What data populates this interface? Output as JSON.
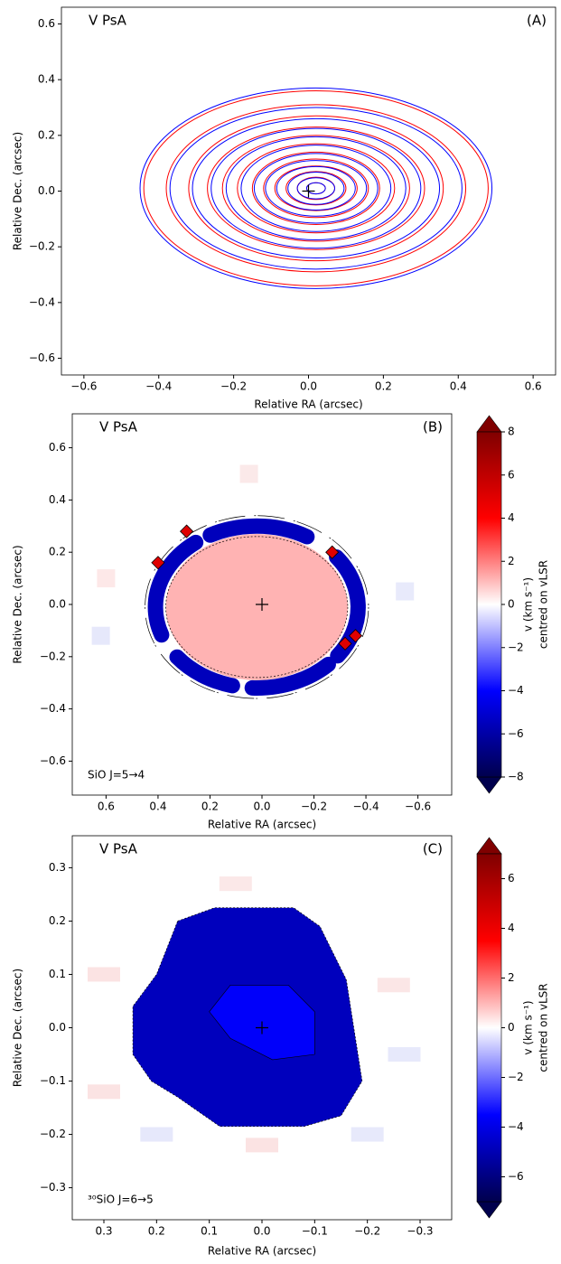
{
  "chart_data": [
    {
      "type": "contour",
      "title": "V PsA",
      "panel": "(A)",
      "xlabel": "Relative RA (arcsec)",
      "ylabel": "Relative Dec. (arcsec)",
      "xlim": [
        -0.66,
        0.66
      ],
      "ylim": [
        -0.66,
        0.66
      ],
      "xticks": [
        {
          "value": -0.6,
          "label": "−0.6"
        },
        {
          "value": -0.4,
          "label": "−0.4"
        },
        {
          "value": -0.2,
          "label": "−0.2"
        },
        {
          "value": 0,
          "label": "0.0"
        },
        0.2,
        0.4,
        0.6
      ],
      "yticks": [
        {
          "value": -0.6,
          "label": "−0.6"
        },
        {
          "value": -0.4,
          "label": "−0.4"
        },
        {
          "value": -0.2,
          "label": "−0.2"
        },
        {
          "value": 0,
          "label": "0.0"
        },
        0.2,
        0.4,
        0.6
      ],
      "center": [
        0.02,
        0.01
      ],
      "series": [
        {
          "color": "#ff0000",
          "rx": [
            0.46,
            0.4,
            0.34,
            0.29,
            0.25,
            0.21,
            0.17,
            0.14,
            0.11,
            0.08,
            0.05,
            0.025
          ],
          "ry": [
            0.35,
            0.3,
            0.26,
            0.22,
            0.19,
            0.16,
            0.13,
            0.105,
            0.08,
            0.06,
            0.04,
            0.02
          ]
        },
        {
          "color": "#0000ff",
          "rx": [
            0.47,
            0.39,
            0.33,
            0.28,
            0.24,
            0.2,
            0.165,
            0.135,
            0.105,
            0.075,
            0.05,
            0.025
          ],
          "ry": [
            0.36,
            0.29,
            0.25,
            0.215,
            0.185,
            0.155,
            0.125,
            0.1,
            0.078,
            0.058,
            0.038,
            0.02
          ]
        }
      ],
      "marker": [
        0,
        0
      ]
    },
    {
      "type": "image",
      "title": "V PsA",
      "panel": "(B)",
      "line": "SiO  J=5→4",
      "xlabel": "Relative RA (arcsec)",
      "ylabel": "Relative Dec. (arcsec)",
      "xlim": [
        0.73,
        -0.73
      ],
      "ylim": [
        -0.73,
        0.73
      ],
      "xticks": [
        0.6,
        0.4,
        0.2,
        {
          "value": 0,
          "label": "0.0"
        },
        {
          "value": -0.2,
          "label": "−0.2"
        },
        {
          "value": -0.4,
          "label": "−0.4"
        },
        {
          "value": -0.6,
          "label": "−0.6"
        }
      ],
      "yticks": [
        {
          "value": -0.6,
          "label": "−0.6"
        },
        {
          "value": -0.4,
          "label": "−0.4"
        },
        {
          "value": -0.2,
          "label": "−0.2"
        },
        {
          "value": 0,
          "label": "0.0"
        },
        0.2,
        0.4,
        0.6
      ],
      "colormap": "seismic",
      "clim": [
        -8,
        8
      ],
      "cticks": [
        {
          "value": -8,
          "label": "−8"
        },
        {
          "value": -6,
          "label": "−6"
        },
        {
          "value": -4,
          "label": "−4"
        },
        {
          "value": -2,
          "label": "−2"
        },
        0,
        2,
        4,
        6,
        8
      ],
      "colorbar_label": [
        "v (km s⁻¹)",
        "centred on vLSR"
      ],
      "values": [
        1.2,
        -5.5,
        5
      ],
      "marker": [
        0,
        0
      ]
    },
    {
      "type": "image",
      "title": "V PsA",
      "panel": "(C)",
      "line": "³⁰SiO  J=6→5",
      "xlabel": "Relative RA (arcsec)",
      "ylabel": "Relative Dec. (arcsec)",
      "xlim": [
        0.36,
        -0.36
      ],
      "ylim": [
        -0.36,
        0.36
      ],
      "xticks": [
        0.3,
        0.2,
        0.1,
        {
          "value": 0,
          "label": "0.0"
        },
        {
          "value": -0.1,
          "label": "−0.1"
        },
        {
          "value": -0.2,
          "label": "−0.2"
        },
        {
          "value": -0.3,
          "label": "−0.3"
        }
      ],
      "yticks": [
        {
          "value": -0.3,
          "label": "−0.3"
        },
        {
          "value": -0.2,
          "label": "−0.2"
        },
        {
          "value": -0.1,
          "label": "−0.1"
        },
        {
          "value": 0,
          "label": "0.0"
        },
        0.1,
        0.2,
        0.3
      ],
      "colormap": "seismic",
      "clim": [
        -7,
        7
      ],
      "cticks": [
        {
          "value": -6,
          "label": "−6"
        },
        {
          "value": -4,
          "label": "−4"
        },
        {
          "value": -2,
          "label": "−2"
        },
        0,
        2,
        4,
        6
      ],
      "colorbar_label": [
        "v (km s⁻¹)",
        "centred on vLSR"
      ],
      "values": [
        -4.8,
        -3.6
      ],
      "marker": [
        0,
        0
      ]
    }
  ]
}
